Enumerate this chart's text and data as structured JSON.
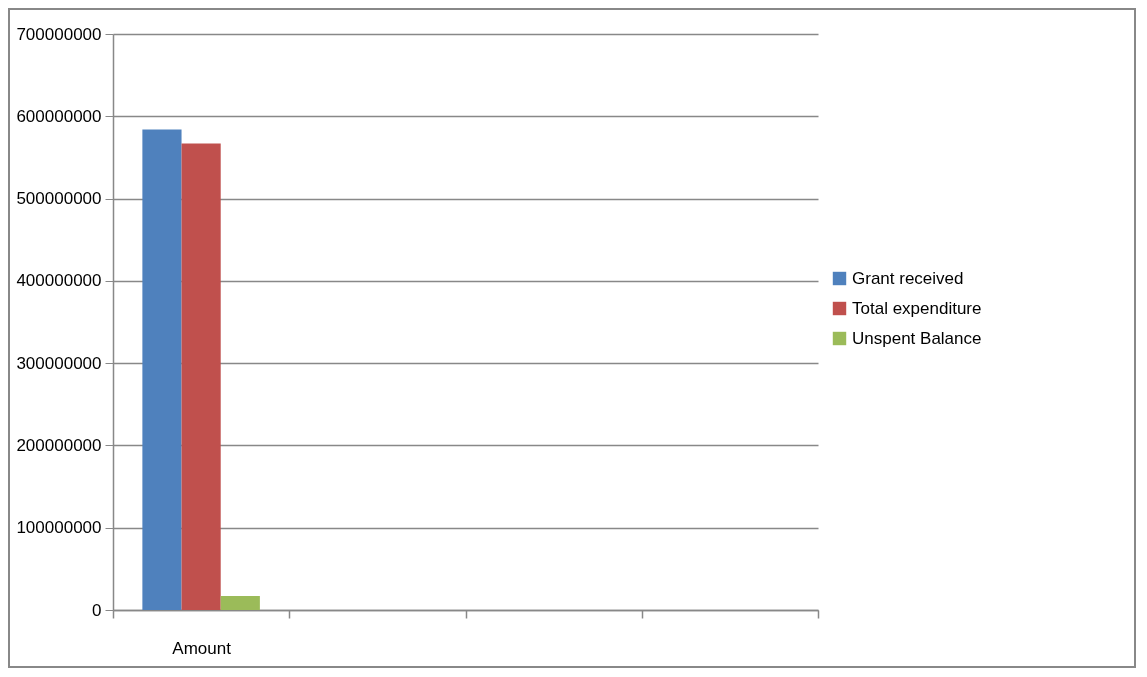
{
  "chart_data": {
    "type": "bar",
    "categories": [
      "Amount",
      null,
      null,
      null
    ],
    "series": [
      {
        "name": "Grant received",
        "color": "#4f81bd",
        "values": [
          584000000,
          null,
          null,
          null
        ]
      },
      {
        "name": "Total expenditure",
        "color": "#c0504d",
        "values": [
          567000000,
          null,
          null,
          null
        ]
      },
      {
        "name": "Unspent Balance",
        "color": "#9bbb59",
        "values": [
          17000000,
          null,
          null,
          null
        ]
      }
    ],
    "ylim": [
      0,
      700000000
    ],
    "yticks": [
      0,
      100000000,
      200000000,
      300000000,
      400000000,
      500000000,
      600000000,
      700000000
    ],
    "grid": "y",
    "legend": "right"
  }
}
